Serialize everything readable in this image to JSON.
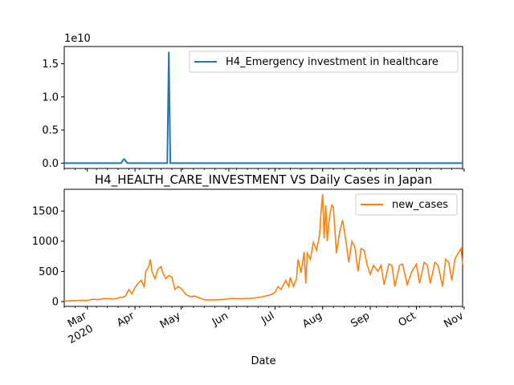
{
  "chart_data": [
    {
      "type": "line",
      "title": "",
      "xlabel": "",
      "ylabel": "",
      "yticks": [
        0.0,
        0.5,
        1.0,
        1.5
      ],
      "yscale_label": "1e10",
      "ylim": [
        -0.08,
        1.76
      ],
      "legend": "top-right",
      "color": "#1f77b4",
      "series": [
        {
          "name": "H4_Emergency investment in healthcare",
          "points": [
            [
              "2020-02-15",
              0
            ],
            [
              "2020-03-23",
              0
            ],
            [
              "2020-03-24",
              0.04
            ],
            [
              "2020-03-25",
              0.06
            ],
            [
              "2020-03-26",
              0.03
            ],
            [
              "2020-03-27",
              0
            ],
            [
              "2020-04-22",
              0
            ],
            [
              "2020-04-23",
              1.68
            ],
            [
              "2020-04-24",
              0
            ],
            [
              "2020-10-31",
              0
            ]
          ]
        }
      ]
    },
    {
      "type": "line",
      "title": "H4_HEALTH_CARE_INVESTMENT VS Daily Cases in Japan",
      "xlabel": "Date",
      "ylabel": "",
      "yticks": [
        0,
        500,
        1000,
        1500
      ],
      "ylim": [
        -80,
        1860
      ],
      "xlim": [
        "2020-02-15",
        "2020-10-31"
      ],
      "legend": "top-right",
      "color": "#ff7f0e",
      "xticks": [
        {
          "date": "2020-03-01",
          "label": "Mar",
          "sub": "2020"
        },
        {
          "date": "2020-04-01",
          "label": "Apr",
          "sub": ""
        },
        {
          "date": "2020-05-01",
          "label": "May",
          "sub": ""
        },
        {
          "date": "2020-06-01",
          "label": "Jun",
          "sub": ""
        },
        {
          "date": "2020-07-01",
          "label": "Jul",
          "sub": ""
        },
        {
          "date": "2020-08-01",
          "label": "Aug",
          "sub": ""
        },
        {
          "date": "2020-09-01",
          "label": "Sep",
          "sub": ""
        },
        {
          "date": "2020-10-01",
          "label": "Oct",
          "sub": ""
        },
        {
          "date": "2020-11-01",
          "label": "Nov",
          "sub": ""
        }
      ],
      "series": [
        {
          "name": "new_cases",
          "points": [
            [
              "2020-02-15",
              5
            ],
            [
              "2020-02-20",
              15
            ],
            [
              "2020-02-25",
              20
            ],
            [
              "2020-03-01",
              20
            ],
            [
              "2020-03-05",
              40
            ],
            [
              "2020-03-08",
              30
            ],
            [
              "2020-03-12",
              50
            ],
            [
              "2020-03-15",
              45
            ],
            [
              "2020-03-18",
              40
            ],
            [
              "2020-03-21",
              60
            ],
            [
              "2020-03-24",
              70
            ],
            [
              "2020-03-26",
              95
            ],
            [
              "2020-03-28",
              200
            ],
            [
              "2020-03-30",
              130
            ],
            [
              "2020-04-01",
              230
            ],
            [
              "2020-04-03",
              300
            ],
            [
              "2020-04-05",
              350
            ],
            [
              "2020-04-07",
              250
            ],
            [
              "2020-04-08",
              500
            ],
            [
              "2020-04-10",
              580
            ],
            [
              "2020-04-11",
              700
            ],
            [
              "2020-04-12",
              500
            ],
            [
              "2020-04-14",
              380
            ],
            [
              "2020-04-16",
              540
            ],
            [
              "2020-04-18",
              580
            ],
            [
              "2020-04-19",
              480
            ],
            [
              "2020-04-21",
              380
            ],
            [
              "2020-04-23",
              430
            ],
            [
              "2020-04-25",
              400
            ],
            [
              "2020-04-27",
              200
            ],
            [
              "2020-04-29",
              250
            ],
            [
              "2020-05-01",
              220
            ],
            [
              "2020-05-04",
              120
            ],
            [
              "2020-05-07",
              80
            ],
            [
              "2020-05-10",
              90
            ],
            [
              "2020-05-13",
              60
            ],
            [
              "2020-05-16",
              30
            ],
            [
              "2020-05-20",
              25
            ],
            [
              "2020-05-25",
              30
            ],
            [
              "2020-05-30",
              40
            ],
            [
              "2020-06-03",
              50
            ],
            [
              "2020-06-08",
              45
            ],
            [
              "2020-06-13",
              50
            ],
            [
              "2020-06-18",
              60
            ],
            [
              "2020-06-23",
              80
            ],
            [
              "2020-06-28",
              110
            ],
            [
              "2020-07-01",
              150
            ],
            [
              "2020-07-03",
              250
            ],
            [
              "2020-07-05",
              200
            ],
            [
              "2020-07-08",
              350
            ],
            [
              "2020-07-10",
              250
            ],
            [
              "2020-07-11",
              400
            ],
            [
              "2020-07-13",
              250
            ],
            [
              "2020-07-15",
              380
            ],
            [
              "2020-07-16",
              700
            ],
            [
              "2020-07-18",
              480
            ],
            [
              "2020-07-20",
              820
            ],
            [
              "2020-07-21",
              300
            ],
            [
              "2020-07-22",
              800
            ],
            [
              "2020-07-24",
              700
            ],
            [
              "2020-07-26",
              980
            ],
            [
              "2020-07-28",
              850
            ],
            [
              "2020-07-30",
              1100
            ],
            [
              "2020-07-31",
              1500
            ],
            [
              "2020-08-01",
              1780
            ],
            [
              "2020-08-02",
              1050
            ],
            [
              "2020-08-03",
              1600
            ],
            [
              "2020-08-04",
              1000
            ],
            [
              "2020-08-05",
              1300
            ],
            [
              "2020-08-06",
              1480
            ],
            [
              "2020-08-07",
              1600
            ],
            [
              "2020-08-08",
              1560
            ],
            [
              "2020-08-10",
              800
            ],
            [
              "2020-08-12",
              1150
            ],
            [
              "2020-08-14",
              1350
            ],
            [
              "2020-08-16",
              1020
            ],
            [
              "2020-08-18",
              650
            ],
            [
              "2020-08-20",
              1000
            ],
            [
              "2020-08-22",
              900
            ],
            [
              "2020-08-24",
              500
            ],
            [
              "2020-08-26",
              880
            ],
            [
              "2020-08-28",
              850
            ],
            [
              "2020-08-30",
              600
            ],
            [
              "2020-09-01",
              450
            ],
            [
              "2020-09-03",
              600
            ],
            [
              "2020-09-06",
              500
            ],
            [
              "2020-09-08",
              600
            ],
            [
              "2020-09-10",
              280
            ],
            [
              "2020-09-13",
              620
            ],
            [
              "2020-09-15",
              600
            ],
            [
              "2020-09-17",
              250
            ],
            [
              "2020-09-20",
              600
            ],
            [
              "2020-09-22",
              620
            ],
            [
              "2020-09-25",
              280
            ],
            [
              "2020-09-28",
              500
            ],
            [
              "2020-10-01",
              620
            ],
            [
              "2020-10-03",
              300
            ],
            [
              "2020-10-06",
              650
            ],
            [
              "2020-10-08",
              600
            ],
            [
              "2020-10-10",
              300
            ],
            [
              "2020-10-13",
              650
            ],
            [
              "2020-10-15",
              600
            ],
            [
              "2020-10-18",
              250
            ],
            [
              "2020-10-20",
              700
            ],
            [
              "2020-10-22",
              650
            ],
            [
              "2020-10-24",
              350
            ],
            [
              "2020-10-26",
              700
            ],
            [
              "2020-10-28",
              800
            ],
            [
              "2020-10-30",
              880
            ],
            [
              "2020-10-31",
              620
            ]
          ]
        }
      ]
    }
  ]
}
